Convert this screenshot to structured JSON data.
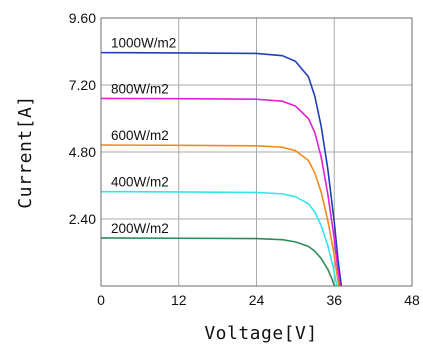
{
  "chart_data": {
    "type": "line",
    "xlabel": "Voltage[V]",
    "ylabel": "Current[A]",
    "xlim": [
      0,
      48
    ],
    "ylim": [
      0,
      9.6
    ],
    "x_ticks": [
      0,
      12,
      24,
      36,
      48
    ],
    "x_tick_labels": [
      "0",
      "12",
      "24",
      "36",
      "48"
    ],
    "y_ticks": [
      2.4,
      4.8,
      7.2,
      9.6
    ],
    "y_tick_labels": [
      "2.40",
      "4.80",
      "7.20",
      "9.60"
    ],
    "grid": true,
    "legend": "inline labels above curves",
    "series": [
      {
        "name": "1000W/m2",
        "color": "#1f3fb8",
        "points": [
          [
            0,
            8.36
          ],
          [
            12,
            8.35
          ],
          [
            24,
            8.33
          ],
          [
            28,
            8.25
          ],
          [
            30,
            8.05
          ],
          [
            32,
            7.5
          ],
          [
            33,
            6.8
          ],
          [
            34,
            5.7
          ],
          [
            35,
            4.2
          ],
          [
            36,
            2.3
          ],
          [
            36.6,
            0.9
          ],
          [
            37.1,
            0
          ]
        ]
      },
      {
        "name": "800W/m2",
        "color": "#e020d8",
        "points": [
          [
            0,
            6.72
          ],
          [
            12,
            6.71
          ],
          [
            24,
            6.69
          ],
          [
            28,
            6.62
          ],
          [
            30,
            6.45
          ],
          [
            32,
            6.0
          ],
          [
            33,
            5.5
          ],
          [
            34,
            4.6
          ],
          [
            35,
            3.3
          ],
          [
            36,
            1.7
          ],
          [
            36.5,
            0.7
          ],
          [
            36.9,
            0
          ]
        ]
      },
      {
        "name": "600W/m2",
        "color": "#f08a1a",
        "points": [
          [
            0,
            5.05
          ],
          [
            12,
            5.04
          ],
          [
            24,
            5.02
          ],
          [
            28,
            4.97
          ],
          [
            30,
            4.85
          ],
          [
            32,
            4.5
          ],
          [
            33,
            4.05
          ],
          [
            34,
            3.35
          ],
          [
            35,
            2.35
          ],
          [
            36,
            1.1
          ],
          [
            36.4,
            0.45
          ],
          [
            36.7,
            0
          ]
        ]
      },
      {
        "name": "400W/m2",
        "color": "#33e5ee",
        "points": [
          [
            0,
            3.38
          ],
          [
            12,
            3.37
          ],
          [
            24,
            3.35
          ],
          [
            28,
            3.3
          ],
          [
            30,
            3.2
          ],
          [
            32,
            2.95
          ],
          [
            33,
            2.65
          ],
          [
            34,
            2.15
          ],
          [
            35,
            1.45
          ],
          [
            35.8,
            0.7
          ],
          [
            36.2,
            0.25
          ],
          [
            36.4,
            0
          ]
        ]
      },
      {
        "name": "200W/m2",
        "color": "#2e8b57",
        "points": [
          [
            0,
            1.72
          ],
          [
            12,
            1.71
          ],
          [
            24,
            1.7
          ],
          [
            28,
            1.66
          ],
          [
            30,
            1.58
          ],
          [
            32,
            1.42
          ],
          [
            33,
            1.25
          ],
          [
            34,
            0.98
          ],
          [
            35,
            0.6
          ],
          [
            35.6,
            0.28
          ],
          [
            35.9,
            0.08
          ],
          [
            36.1,
            0
          ]
        ]
      }
    ]
  }
}
